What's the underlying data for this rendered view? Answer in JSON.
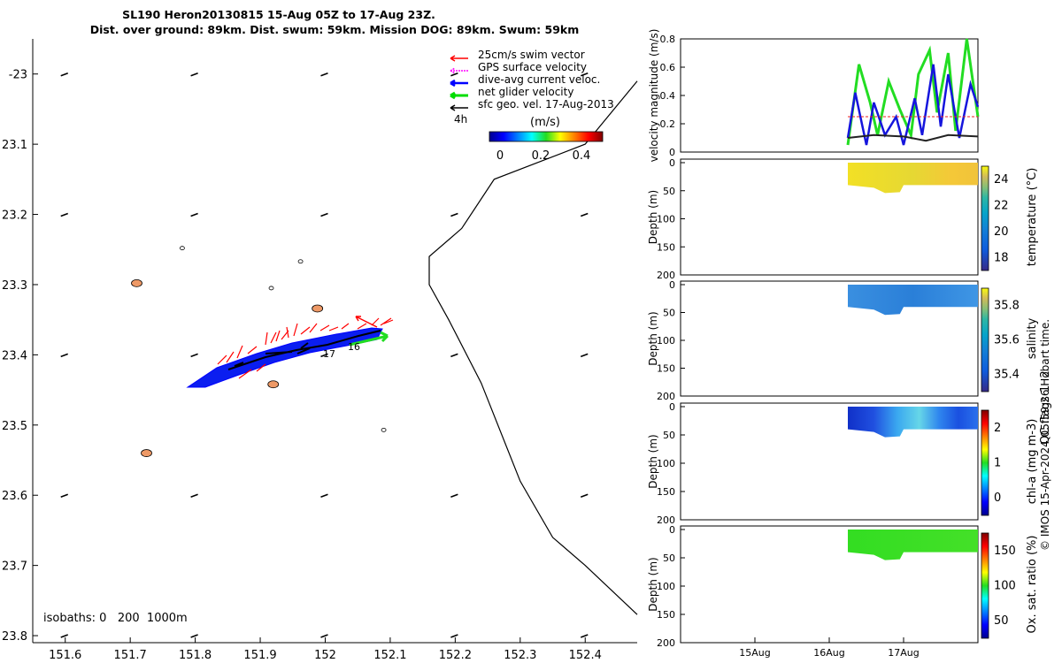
{
  "chart_data": [
    {
      "type": "map",
      "title_line1": "SL190 Heron20130815 15-Aug 05Z to 17-Aug 23Z.",
      "title_line2": "Dist. over ground: 89km. Dist. swum: 59km. Mission DOG: 89km. Swum: 59km",
      "xlim": [
        151.55,
        152.48
      ],
      "ylim": [
        -23.81,
        -22.95
      ],
      "x_ticks": [
        151.6,
        151.7,
        151.8,
        151.9,
        152,
        152.1,
        152.2,
        152.3,
        152.4
      ],
      "x_tick_labels": [
        "151.6",
        "151.7",
        "151.8",
        "151.9",
        "152",
        "152.1",
        "152.2",
        "152.3",
        "152.4"
      ],
      "y_ticks": [
        -23,
        -23.1,
        -23.2,
        -23.3,
        -23.4,
        -23.5,
        -23.6,
        -23.7,
        -23.8
      ],
      "y_tick_labels": [
        "-23",
        "23.1",
        "23.2",
        "23.3",
        "23.4",
        "23.5",
        "23.6",
        "23.7",
        "23.8"
      ],
      "legend": [
        {
          "label": "25cm/s swim vector",
          "color": "#ff0000"
        },
        {
          "label": "GPS surface velocity",
          "color": "#ff00ff"
        },
        {
          "label": "dive-avg current veloc.",
          "color": "#0000ff"
        },
        {
          "label": "net glider velocity",
          "color": "#00dd00"
        },
        {
          "label": "sfc geo. vel. 17-Aug-2013",
          "color": "#000000"
        }
      ],
      "legend_position": "top-right",
      "time_label": "4h",
      "colorbar_title": "(m/s)",
      "colorbar_ticks": [
        "0",
        "0.2",
        "0.4"
      ],
      "isobaths_label": "isobaths: 0   200  1000m",
      "track_labels": [
        "17",
        "16"
      ],
      "coastline": [
        [
          152.48,
          -23.01
        ],
        [
          152.4,
          -23.1
        ],
        [
          152.26,
          -23.15
        ],
        [
          152.21,
          -23.22
        ],
        [
          152.16,
          -23.26
        ],
        [
          152.16,
          -23.3
        ],
        [
          152.19,
          -23.35
        ],
        [
          152.24,
          -23.44
        ],
        [
          152.3,
          -23.58
        ],
        [
          152.35,
          -23.66
        ],
        [
          152.4,
          -23.7
        ],
        [
          152.48,
          -23.77
        ]
      ],
      "islands": [
        {
          "lon": 151.71,
          "lat": -23.298,
          "fill": "#ee9966"
        },
        {
          "lon": 151.78,
          "lat": -23.248,
          "fill": "#ffffff"
        },
        {
          "lon": 151.962,
          "lat": -23.267,
          "fill": "#ffffff"
        },
        {
          "lon": 151.988,
          "lat": -23.334,
          "fill": "#ee9966"
        },
        {
          "lon": 151.92,
          "lat": -23.442,
          "fill": "#ee9966"
        },
        {
          "lon": 152.09,
          "lat": -23.507,
          "fill": "#ffffff"
        },
        {
          "lon": 151.725,
          "lat": -23.54,
          "fill": "#ee9966"
        },
        {
          "lon": 151.917,
          "lat": -23.305,
          "fill": "#ffffff"
        }
      ],
      "track_start": [
        151.785,
        -23.445
      ],
      "track_end": [
        152.07,
        -23.37
      ]
    },
    {
      "type": "line",
      "ylabel": "velocity magnitude (m/s)",
      "ylim": [
        0,
        0.8
      ],
      "y_ticks": [
        "0",
        "0.2",
        "0.4",
        "0.6",
        "0.8"
      ],
      "x_days": [
        0,
        1,
        2,
        3,
        4
      ],
      "series": [
        {
          "name": "net glider velocity",
          "color": "#22dd22",
          "x": [
            2.25,
            2.4,
            2.55,
            2.65,
            2.8,
            2.95,
            3.1,
            3.2,
            3.35,
            3.45,
            3.6,
            3.7,
            3.85,
            4.0
          ],
          "values": [
            0.05,
            0.62,
            0.35,
            0.12,
            0.5,
            0.3,
            0.12,
            0.55,
            0.72,
            0.28,
            0.7,
            0.15,
            0.8,
            0.25
          ]
        },
        {
          "name": "dive-avg current",
          "color": "#1515dd",
          "x": [
            2.25,
            2.35,
            2.5,
            2.6,
            2.75,
            2.9,
            3.0,
            3.15,
            3.25,
            3.4,
            3.5,
            3.6,
            3.75,
            3.9,
            4.0
          ],
          "values": [
            0.1,
            0.42,
            0.05,
            0.35,
            0.12,
            0.25,
            0.05,
            0.38,
            0.12,
            0.62,
            0.18,
            0.55,
            0.1,
            0.48,
            0.32
          ]
        },
        {
          "name": "swim speed",
          "color": "#ee2222",
          "x": [
            2.25,
            4.0
          ],
          "values": [
            0.25,
            0.25
          ]
        },
        {
          "name": "geostrophic",
          "color": "#222222",
          "x": [
            2.25,
            2.6,
            3.0,
            3.3,
            3.6,
            4.0
          ],
          "values": [
            0.1,
            0.12,
            0.11,
            0.08,
            0.12,
            0.11
          ]
        }
      ]
    },
    {
      "type": "heatmap",
      "colorbar_label": "temperature (°C)",
      "colorbar_ticks": [
        "18",
        "20",
        "22",
        "24"
      ],
      "colormap": "parula",
      "ylabel": "Depth (m)",
      "y_ticks": [
        "0",
        "50",
        "100",
        "150",
        "200"
      ],
      "data_start_day": 2.25,
      "data_end_day": 4.0,
      "shallow_depth_m": 0,
      "deep_depth_m": 40
    },
    {
      "type": "heatmap",
      "colorbar_label": "salinity",
      "colorbar_ticks": [
        "35.4",
        "35.6",
        "35.8"
      ],
      "colormap": "parula",
      "ylabel": "Depth (m)",
      "y_ticks": [
        "0",
        "50",
        "100",
        "150",
        "200"
      ],
      "data_start_day": 2.25,
      "data_end_day": 4.0,
      "shallow_depth_m": 0,
      "deep_depth_m": 40
    },
    {
      "type": "heatmap",
      "colorbar_label": "chl-a (mg m-3)",
      "colorbar_ticks": [
        "0",
        "1",
        "2"
      ],
      "colormap": "jet",
      "ylabel": "Depth (m)",
      "y_ticks": [
        "0",
        "50",
        "100",
        "150",
        "200"
      ],
      "data_start_day": 2.25,
      "data_end_day": 4.0,
      "shallow_depth_m": 0,
      "deep_depth_m": 40
    },
    {
      "type": "heatmap",
      "colorbar_label": "Ox. sat. ratio (%)",
      "colorbar_ticks": [
        "50",
        "100",
        "150"
      ],
      "colormap": "jet",
      "ylabel": "Depth (m)",
      "y_ticks": [
        "0",
        "50",
        "100",
        "150",
        "200"
      ],
      "data_start_day": 2.25,
      "data_end_day": 4.0,
      "shallow_depth_m": 0,
      "deep_depth_m": 40
    }
  ],
  "time_axis": {
    "tick_days": [
      1,
      2,
      3
    ],
    "tick_labels": [
      "15Aug",
      "16Aug",
      "17Aug"
    ]
  },
  "qc_label": "QC flags 1  2",
  "credit": "© IMOS 15-Apr-2024 05:59:26 Hobart time."
}
